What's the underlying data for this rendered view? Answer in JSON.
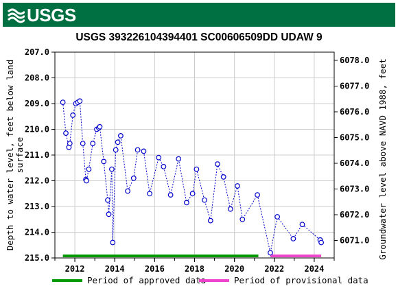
{
  "header": {
    "logo_text": "USGS",
    "brand_color": "#006f41"
  },
  "chart_data": {
    "type": "scatter",
    "title": "USGS 393226104394401 SC00606509DD UDAW 9",
    "ylabel_left": "Depth to water level, feet below land surface",
    "ylabel_left_lines": [
      "Depth to water level, feet below land",
      "surface"
    ],
    "ylabel_right": "Groundwater level above NAVD 1988, feet",
    "y_left_range": [
      207.0,
      215.0
    ],
    "y_left_inverted": true,
    "y_left_ticks": [
      "207.0",
      "208.0",
      "209.0",
      "210.0",
      "211.0",
      "212.0",
      "213.0",
      "214.0",
      "215.0"
    ],
    "y_right_ticks": [
      "6078.0",
      "6077.0",
      "6076.0",
      "6075.0",
      "6074.0",
      "6073.0",
      "6072.0",
      "6071.0"
    ],
    "x_range": [
      2011.0,
      2025.0
    ],
    "x_ticks": [
      "2012",
      "2014",
      "2016",
      "2018",
      "2020",
      "2022",
      "2024"
    ],
    "grid": true,
    "series": [
      {
        "color": "#0000cc",
        "points": [
          [
            2011.4,
            208.95
          ],
          [
            2011.55,
            210.15
          ],
          [
            2011.7,
            210.7
          ],
          [
            2011.75,
            210.55
          ],
          [
            2011.9,
            209.45
          ],
          [
            2012.05,
            209.0
          ],
          [
            2012.15,
            208.95
          ],
          [
            2012.25,
            208.9
          ],
          [
            2012.4,
            210.55
          ],
          [
            2012.55,
            211.95
          ],
          [
            2012.58,
            212.0
          ],
          [
            2012.7,
            211.55
          ],
          [
            2012.9,
            210.55
          ],
          [
            2013.1,
            210.0
          ],
          [
            2013.2,
            209.95
          ],
          [
            2013.25,
            209.9
          ],
          [
            2013.45,
            211.25
          ],
          [
            2013.65,
            212.75
          ],
          [
            2013.7,
            213.3
          ],
          [
            2013.85,
            211.55
          ],
          [
            2013.9,
            214.4
          ],
          [
            2014.05,
            210.8
          ],
          [
            2014.15,
            210.5
          ],
          [
            2014.3,
            210.25
          ],
          [
            2014.65,
            212.4
          ],
          [
            2014.95,
            211.9
          ],
          [
            2015.15,
            210.8
          ],
          [
            2015.45,
            210.85
          ],
          [
            2015.75,
            212.5
          ],
          [
            2016.2,
            211.1
          ],
          [
            2016.45,
            211.45
          ],
          [
            2016.8,
            212.55
          ],
          [
            2017.2,
            211.15
          ],
          [
            2017.6,
            212.85
          ],
          [
            2017.9,
            212.5
          ],
          [
            2018.1,
            211.55
          ],
          [
            2018.5,
            212.75
          ],
          [
            2018.8,
            213.55
          ],
          [
            2019.15,
            211.35
          ],
          [
            2019.45,
            211.85
          ],
          [
            2019.8,
            213.1
          ],
          [
            2020.15,
            212.2
          ],
          [
            2020.4,
            213.5
          ],
          [
            2021.15,
            212.55
          ],
          [
            2021.8,
            214.8
          ],
          [
            2022.15,
            213.4
          ],
          [
            2022.95,
            214.25
          ],
          [
            2023.4,
            213.7
          ],
          [
            2024.3,
            214.3
          ],
          [
            2024.35,
            214.4
          ]
        ]
      }
    ],
    "approval_bars": [
      {
        "label": "Period of approved data",
        "color": "#009900",
        "start": 2011.4,
        "end": 2021.2
      },
      {
        "label": "Period of provisional data",
        "color": "#ee44cc",
        "start": 2021.8,
        "end": 2024.35
      }
    ],
    "legend": {
      "position": "bottom",
      "items": [
        {
          "label": "Period of approved data",
          "color": "#009900"
        },
        {
          "label": "Period of provisional data",
          "color": "#ee44cc"
        }
      ]
    }
  }
}
